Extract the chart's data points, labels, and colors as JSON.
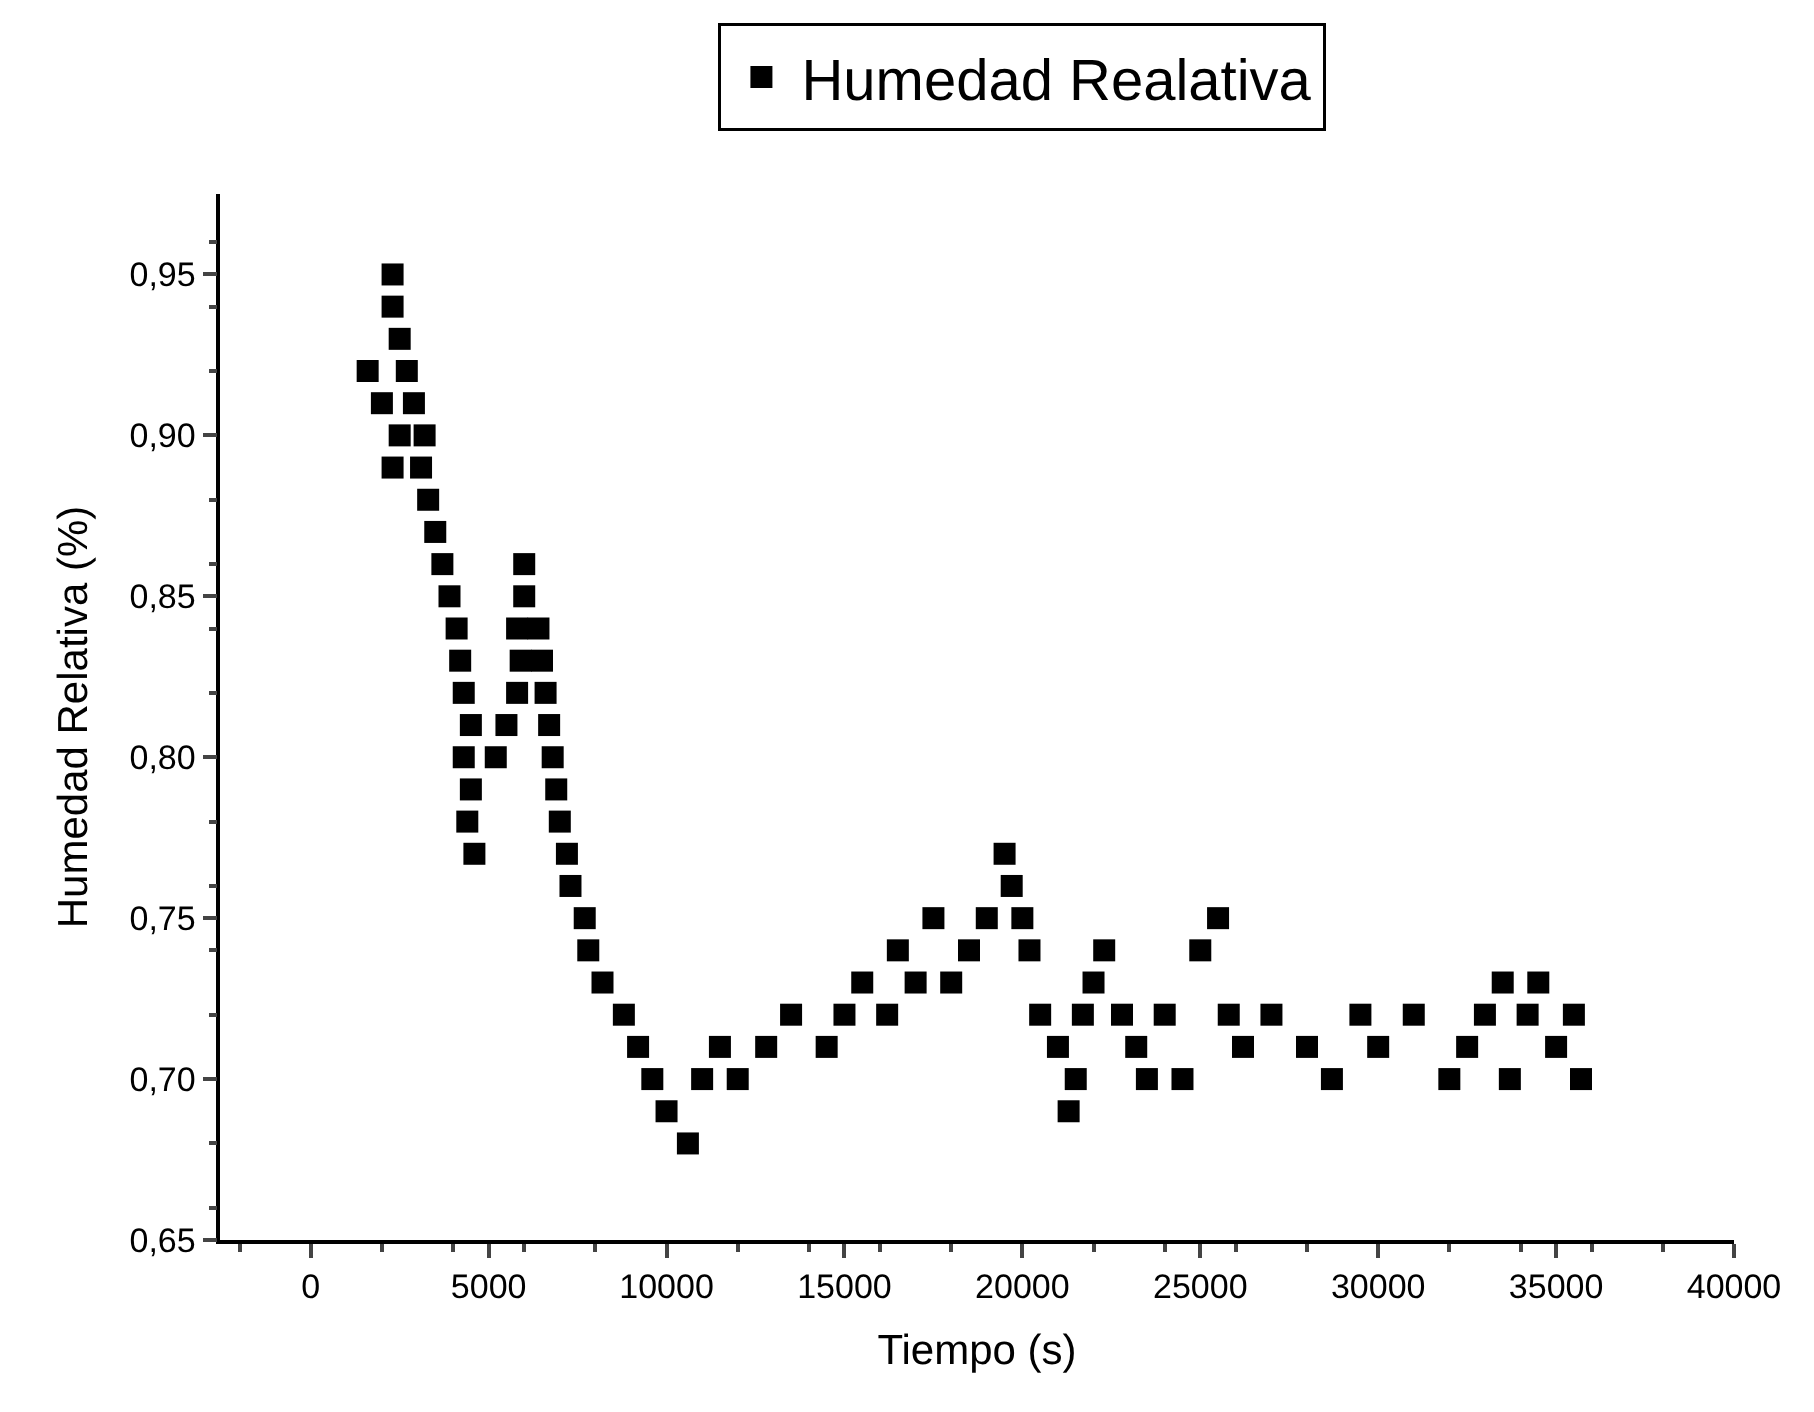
{
  "chart_data": {
    "type": "scatter",
    "xlabel": "Tiempo (s)",
    "ylabel": "Humedad Relativa (%)",
    "xlim": [
      -2550,
      40000
    ],
    "ylim": [
      0.65,
      0.975
    ],
    "xticks": [
      0,
      5000,
      10000,
      15000,
      20000,
      25000,
      30000,
      35000,
      40000
    ],
    "yticks": [
      {
        "value": 0.65,
        "label": "0,65"
      },
      {
        "value": 0.7,
        "label": "0,70"
      },
      {
        "value": 0.75,
        "label": "0,75"
      },
      {
        "value": 0.8,
        "label": "0,80"
      },
      {
        "value": 0.85,
        "label": "0,85"
      },
      {
        "value": 0.9,
        "label": "0,90"
      },
      {
        "value": 0.95,
        "label": "0,95"
      }
    ],
    "marker": "square",
    "legend": "top",
    "series": [
      {
        "name": "Humedad Realativa",
        "color": "#000000",
        "x": [
          1600,
          2000,
          2300,
          2300,
          2500,
          2700,
          2900,
          2500,
          2300,
          3200,
          3100,
          3300,
          3500,
          3700,
          3900,
          4100,
          4200,
          4300,
          4500,
          4300,
          4500,
          4400,
          4600,
          5200,
          5500,
          5800,
          5900,
          5800,
          6000,
          6000,
          6400,
          6500,
          6600,
          6700,
          6800,
          6900,
          7000,
          7200,
          7300,
          7700,
          7800,
          8200,
          8800,
          9200,
          9600,
          10000,
          10600,
          11000,
          11500,
          12000,
          12800,
          13500,
          14500,
          15000,
          15500,
          16200,
          16500,
          17000,
          17500,
          18000,
          18500,
          19000,
          19500,
          19700,
          20000,
          20200,
          20500,
          21000,
          21300,
          21500,
          21700,
          22000,
          22300,
          22800,
          23200,
          23500,
          24000,
          24500,
          25000,
          25500,
          25800,
          26200,
          27000,
          28000,
          28700,
          29500,
          30000,
          31000,
          32000,
          32500,
          33000,
          33500,
          33700,
          34200,
          34500,
          35000,
          35500,
          35700
        ],
        "values": [
          0.92,
          0.91,
          0.95,
          0.94,
          0.93,
          0.92,
          0.91,
          0.9,
          0.89,
          0.9,
          0.89,
          0.88,
          0.87,
          0.86,
          0.85,
          0.84,
          0.83,
          0.82,
          0.81,
          0.8,
          0.79,
          0.78,
          0.77,
          0.8,
          0.81,
          0.82,
          0.83,
          0.84,
          0.85,
          0.86,
          0.84,
          0.83,
          0.82,
          0.81,
          0.8,
          0.79,
          0.78,
          0.77,
          0.76,
          0.75,
          0.74,
          0.73,
          0.72,
          0.71,
          0.7,
          0.69,
          0.68,
          0.7,
          0.71,
          0.7,
          0.71,
          0.72,
          0.71,
          0.72,
          0.73,
          0.72,
          0.74,
          0.73,
          0.75,
          0.73,
          0.74,
          0.75,
          0.77,
          0.76,
          0.75,
          0.74,
          0.72,
          0.71,
          0.69,
          0.7,
          0.72,
          0.73,
          0.74,
          0.72,
          0.71,
          0.7,
          0.72,
          0.7,
          0.74,
          0.75,
          0.72,
          0.71,
          0.72,
          0.71,
          0.7,
          0.72,
          0.71,
          0.72,
          0.7,
          0.71,
          0.72,
          0.73,
          0.7,
          0.72,
          0.73,
          0.71,
          0.72,
          0.7
        ]
      }
    ]
  }
}
